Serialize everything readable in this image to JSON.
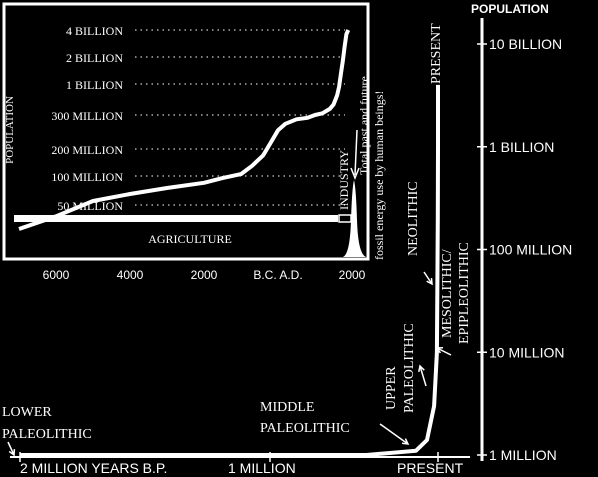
{
  "chart_data": [
    {
      "type": "line",
      "ylabel": "POPULATION",
      "yscale": "log",
      "y_ticks": [
        {
          "label": "10 BILLION",
          "value": 10000000000
        },
        {
          "label": "1 BILLION",
          "value": 1000000000
        },
        {
          "label": "100 MILLION",
          "value": 100000000
        },
        {
          "label": "10 MILLION",
          "value": 10000000
        },
        {
          "label": "1 MILLION",
          "value": 1000000
        }
      ],
      "x_ticks": [
        {
          "label": "2 MILLION YEARS B.P.",
          "value": -2000000
        },
        {
          "label": "1 MILLION",
          "value": -1000000
        },
        {
          "label": "PRESENT",
          "value": 0
        }
      ],
      "series": [
        {
          "x": [
            -2000000,
            -1500000,
            -1000000,
            -500000,
            -200000,
            -100000,
            -35000,
            -15000,
            -10000,
            -5000,
            -2000,
            -300,
            0
          ],
          "y": [
            1000000,
            1000000,
            1000000,
            1000000,
            1100000,
            1400000,
            3000000,
            8000000,
            10000000,
            50000000,
            200000000,
            1000000000,
            4000000000
          ]
        }
      ],
      "stage_labels": [
        {
          "text": "LOWER",
          "x": -2000000
        },
        {
          "text": "PALEOLITHIC",
          "x": -2000000
        },
        {
          "text": "MIDDLE",
          "x": -200000
        },
        {
          "text": "PALEOLITHIC",
          "x": -200000
        },
        {
          "text": "UPPER",
          "x": -35000
        },
        {
          "text": "PALEOLITHIC",
          "x": -35000
        },
        {
          "text": "MESOLITHIC/",
          "x": -15000
        },
        {
          "text": "EPIPLEOLITHIC",
          "x": -15000
        },
        {
          "text": "NEOLITHIC",
          "x": -10000
        },
        {
          "text": "PRESENT",
          "x": 0
        }
      ]
    },
    {
      "type": "line",
      "ylabel": "POPULATION",
      "y_ticks": [
        {
          "label": "4 BILLION",
          "value": 4000000000
        },
        {
          "label": "2 BILLION",
          "value": 2000000000
        },
        {
          "label": "1 BILLION",
          "value": 1000000000
        },
        {
          "label": "300 MILLION",
          "value": 300000000
        },
        {
          "label": "200 MILLION",
          "value": 200000000
        },
        {
          "label": "100 MILLION",
          "value": 100000000
        },
        {
          "label": "50 MILLION",
          "value": 50000000
        }
      ],
      "x_ticks": [
        {
          "label": "6000",
          "value": -6000
        },
        {
          "label": "4000",
          "value": -4000
        },
        {
          "label": "2000",
          "value": -2000
        },
        {
          "label": "B.C. A.D.",
          "value": 0
        },
        {
          "label": "2000",
          "value": 2000
        }
      ],
      "series": [
        {
          "x": [
            -7000,
            -6000,
            -5000,
            -4000,
            -3000,
            -2000,
            -1500,
            -1000,
            -700,
            -400,
            -200,
            0,
            200,
            500,
            800,
            1000,
            1200,
            1400,
            1500,
            1600,
            1650,
            1700,
            1750,
            1800,
            1850,
            1900
          ],
          "y": [
            40000000,
            45000000,
            55000000,
            65000000,
            75000000,
            85000000,
            95000000,
            105000000,
            130000000,
            170000000,
            215000000,
            250000000,
            270000000,
            285000000,
            290000000,
            300000000,
            320000000,
            380000000,
            450000000,
            650000000,
            900000000,
            1300000000,
            1800000000,
            2600000000,
            3600000000,
            4000000000
          ]
        }
      ],
      "annotations": [
        {
          "text": "AGRICULTURE"
        },
        {
          "text": "INDUSTRY"
        },
        {
          "text": "Total past and future"
        },
        {
          "text": "fossil energy use by human beings!"
        }
      ]
    }
  ]
}
